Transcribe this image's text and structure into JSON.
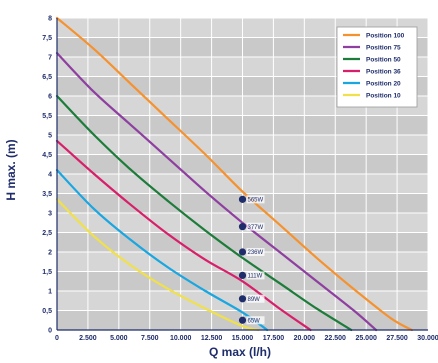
{
  "chart_data": {
    "type": "line",
    "xlabel": "Q max (l/h)",
    "ylabel": "H max. (m)",
    "xlim": [
      0,
      30000
    ],
    "ylim": [
      0,
      8
    ],
    "x_ticks": [
      {
        "value": 0,
        "label": "0"
      },
      {
        "value": 2500,
        "label": "2.500"
      },
      {
        "value": 5000,
        "label": "5.000"
      },
      {
        "value": 7500,
        "label": "7.500"
      },
      {
        "value": 10000,
        "label": "10.000"
      },
      {
        "value": 12500,
        "label": "12.500"
      },
      {
        "value": 15000,
        "label": "15.000"
      },
      {
        "value": 17500,
        "label": "17.500"
      },
      {
        "value": 20000,
        "label": "20.000"
      },
      {
        "value": 22500,
        "label": "22.500"
      },
      {
        "value": 25000,
        "label": "25.000"
      },
      {
        "value": 27500,
        "label": "27.500"
      },
      {
        "value": 30000,
        "label": "30.000"
      }
    ],
    "y_ticks": [
      {
        "value": 0,
        "label": "0"
      },
      {
        "value": 0.5,
        "label": "0,5"
      },
      {
        "value": 1,
        "label": "1"
      },
      {
        "value": 1.5,
        "label": "1,5"
      },
      {
        "value": 2,
        "label": "2"
      },
      {
        "value": 2.5,
        "label": "2,5"
      },
      {
        "value": 3,
        "label": "3"
      },
      {
        "value": 3.5,
        "label": "3,5"
      },
      {
        "value": 4,
        "label": "4"
      },
      {
        "value": 4.5,
        "label": "4,5"
      },
      {
        "value": 5,
        "label": "5"
      },
      {
        "value": 5.5,
        "label": "5,5"
      },
      {
        "value": 6,
        "label": "6"
      },
      {
        "value": 6.5,
        "label": "6,5"
      },
      {
        "value": 7,
        "label": "7"
      },
      {
        "value": 7.5,
        "label": "7,5"
      },
      {
        "value": 8,
        "label": "8"
      }
    ],
    "grid": true,
    "legend_position": "top-right",
    "series": [
      {
        "name": "Position 100",
        "color": "#f5922f",
        "x": [
          0,
          3000,
          6000,
          9000,
          12000,
          15000,
          18000,
          21000,
          24000,
          27000,
          28700
        ],
        "y": [
          8.0,
          7.2,
          6.3,
          5.4,
          4.5,
          3.55,
          2.7,
          1.85,
          1.05,
          0.3,
          0.0
        ]
      },
      {
        "name": "Position 75",
        "color": "#8e3fa0",
        "x": [
          0,
          3000,
          6000,
          9000,
          12000,
          15000,
          18000,
          21000,
          24000,
          25800
        ],
        "y": [
          7.1,
          6.1,
          5.25,
          4.4,
          3.55,
          2.75,
          2.0,
          1.25,
          0.5,
          0.0
        ]
      },
      {
        "name": "Position 50",
        "color": "#1d7c3a",
        "x": [
          0,
          3000,
          6000,
          9000,
          12000,
          15000,
          18000,
          21000,
          23800
        ],
        "y": [
          6.0,
          5.0,
          4.1,
          3.3,
          2.55,
          1.85,
          1.2,
          0.55,
          0.0
        ]
      },
      {
        "name": "Position 36",
        "color": "#d81f6a",
        "x": [
          0,
          3000,
          6000,
          9000,
          12000,
          15000,
          18000,
          20500
        ],
        "y": [
          4.85,
          4.0,
          3.2,
          2.45,
          1.8,
          1.25,
          0.55,
          0.0
        ]
      },
      {
        "name": "Position 20",
        "color": "#1aa6e0",
        "x": [
          0,
          3000,
          6000,
          9000,
          12000,
          15000,
          17000
        ],
        "y": [
          4.1,
          3.1,
          2.3,
          1.6,
          1.0,
          0.45,
          0.0
        ]
      },
      {
        "name": "Position 10",
        "color": "#f0e04a",
        "x": [
          0,
          3000,
          6000,
          9000,
          12000,
          15000,
          16300
        ],
        "y": [
          3.35,
          2.4,
          1.65,
          1.05,
          0.55,
          0.1,
          0.0
        ]
      }
    ],
    "points": [
      {
        "x": 15000,
        "y": 3.35,
        "label": "565W"
      },
      {
        "x": 15000,
        "y": 2.65,
        "label": "377W"
      },
      {
        "x": 15000,
        "y": 2.0,
        "label": "236W"
      },
      {
        "x": 15000,
        "y": 1.4,
        "label": "111W"
      },
      {
        "x": 15000,
        "y": 0.8,
        "label": "89W"
      },
      {
        "x": 15000,
        "y": 0.25,
        "label": "65W"
      }
    ],
    "colors": {
      "plot_background": "#d6d6d6",
      "band": "#c9c9c9",
      "gridline": "#ffffff",
      "axis": "#1f2d6b",
      "point": "#1f2d6b"
    }
  }
}
